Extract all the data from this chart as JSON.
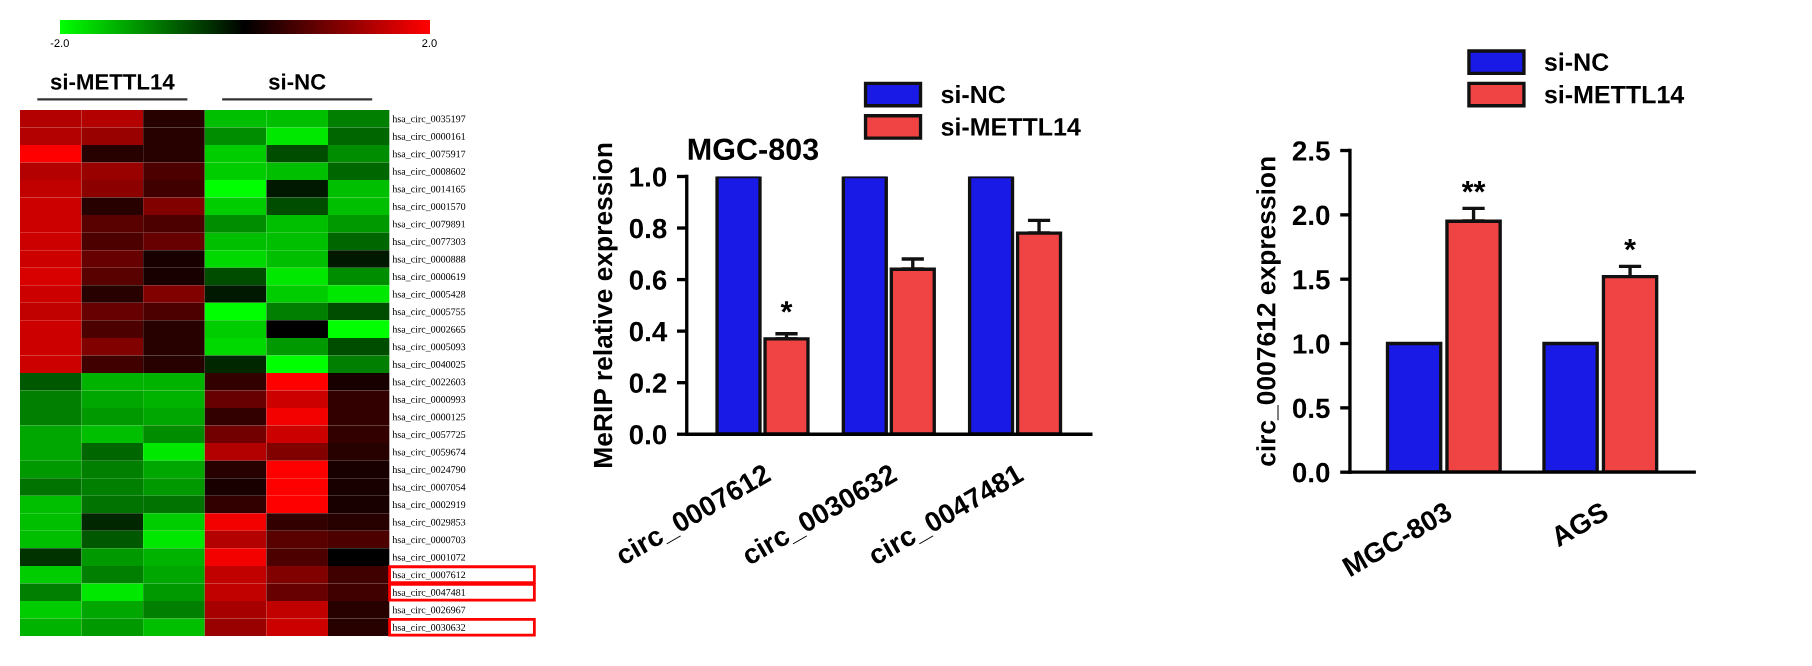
{
  "chart_data": [
    {
      "type": "heatmap",
      "categories": [
        null,
        null,
        null,
        null,
        null,
        null
      ],
      "y_categories": [
        "hsa_circ_0035197",
        "hsa_circ_0000161",
        "hsa_circ_0075917",
        "hsa_circ_0008602",
        "hsa_circ_0014165",
        "hsa_circ_0001570",
        "hsa_circ_0079891",
        "hsa_circ_0077303",
        "hsa_circ_0000888",
        "hsa_circ_0000619",
        "hsa_circ_0005428",
        "hsa_circ_0005755",
        "hsa_circ_0002665",
        "hsa_circ_0005093",
        "hsa_circ_0040025",
        "hsa_circ_0022603",
        "hsa_circ_0000993",
        "hsa_circ_0000125",
        "hsa_circ_0057725",
        "hsa_circ_0059674",
        "hsa_circ_0024790",
        "hsa_circ_0007054",
        "hsa_circ_0002919",
        "hsa_circ_0029853",
        "hsa_circ_0000703",
        "hsa_circ_0001072",
        "hsa_circ_0007612",
        "hsa_circ_0047481",
        "hsa_circ_0026967",
        "hsa_circ_0030632"
      ],
      "cells": [
        [
          1.4,
          1.4,
          0.3,
          -1.5,
          -1.5,
          -1.0
        ],
        [
          1.4,
          1.2,
          0.3,
          -1.1,
          -1.8,
          -0.8
        ],
        [
          2.0,
          0.3,
          0.3,
          -1.6,
          -0.6,
          -1.1
        ],
        [
          1.4,
          1.2,
          0.6,
          -1.6,
          -1.5,
          -0.8
        ],
        [
          1.5,
          1.1,
          0.5,
          -2.0,
          -0.2,
          -1.5
        ],
        [
          1.6,
          0.3,
          1.0,
          -1.6,
          -0.6,
          -1.5
        ],
        [
          1.6,
          0.7,
          0.6,
          -1.1,
          -1.5,
          -1.2
        ],
        [
          1.6,
          0.6,
          0.8,
          -1.5,
          -1.5,
          -0.8
        ],
        [
          1.6,
          0.8,
          0.2,
          -1.7,
          -1.5,
          -0.2
        ],
        [
          1.7,
          0.7,
          0.2,
          -0.6,
          -1.8,
          -1.1
        ],
        [
          1.6,
          0.3,
          1.0,
          -0.2,
          -1.6,
          -1.8
        ],
        [
          1.5,
          0.8,
          0.6,
          -2.0,
          -1.0,
          -0.6
        ],
        [
          1.6,
          0.6,
          0.3,
          -1.6,
          0.0,
          -2.0
        ],
        [
          1.6,
          1.0,
          0.3,
          -1.7,
          -1.2,
          -0.6
        ],
        [
          1.6,
          0.5,
          0.3,
          -0.3,
          -2.0,
          -1.0
        ],
        [
          -0.7,
          -1.4,
          -1.4,
          0.4,
          2.0,
          0.2
        ],
        [
          -1.0,
          -1.3,
          -1.4,
          0.8,
          1.6,
          0.4
        ],
        [
          -1.0,
          -1.2,
          -1.3,
          0.4,
          1.9,
          0.4
        ],
        [
          -1.3,
          -1.5,
          -1.1,
          0.9,
          1.6,
          0.4
        ],
        [
          -1.3,
          -0.8,
          -1.8,
          1.4,
          1.0,
          0.3
        ],
        [
          -1.2,
          -1.0,
          -1.3,
          0.3,
          2.0,
          0.2
        ],
        [
          -0.9,
          -1.0,
          -1.2,
          0.2,
          2.0,
          0.2
        ],
        [
          -1.5,
          -0.9,
          -0.9,
          0.4,
          2.0,
          0.2
        ],
        [
          -1.5,
          -0.3,
          -1.6,
          1.9,
          0.4,
          0.3
        ],
        [
          -1.5,
          -0.7,
          -1.8,
          1.4,
          0.7,
          0.6
        ],
        [
          -0.4,
          -1.2,
          -1.4,
          1.9,
          0.6,
          0.0
        ],
        [
          -1.6,
          -1.0,
          -1.3,
          1.5,
          1.0,
          0.5
        ],
        [
          -1.0,
          -1.8,
          -1.2,
          1.5,
          0.8,
          0.5
        ],
        [
          -1.6,
          -1.3,
          -1.0,
          1.3,
          1.5,
          0.3
        ],
        [
          -1.4,
          -1.2,
          -1.5,
          1.2,
          1.6,
          0.3
        ]
      ],
      "clim": [
        -2,
        2
      ],
      "cticks": [
        {
          "value": -2,
          "label": "-2.0"
        },
        {
          "value": 2,
          "label": "2.0"
        }
      ],
      "annotations": [
        "si-METTL14",
        "si-NC"
      ]
    },
    {
      "type": "bar",
      "title": "MGC-803",
      "ylabel": "MeRIP relative expression",
      "categories": [
        "circ_0007612",
        "circ_0030632",
        "circ_0047481"
      ],
      "series": [
        {
          "name": "si-NC",
          "color": "#1a1ae6",
          "values": [
            1.0,
            1.0,
            1.0
          ]
        },
        {
          "name": "si-METTL14",
          "color": "#f04444",
          "values": [
            0.37,
            0.64,
            0.78
          ],
          "errors": [
            0.02,
            0.04,
            0.05
          ]
        }
      ],
      "ylim": [
        0,
        1.0
      ],
      "yticks": [
        {
          "value": 0,
          "label": "0.0"
        },
        {
          "value": 0.2,
          "label": "0.2"
        },
        {
          "value": 0.4,
          "label": "0.4"
        },
        {
          "value": 0.6,
          "label": "0.6"
        },
        {
          "value": 0.8,
          "label": "0.8"
        },
        {
          "value": 1.0,
          "label": "1.0"
        }
      ],
      "annotations": [
        {
          "text": "*",
          "x": "circ_0007612",
          "y": 0.41
        }
      ],
      "legend": "top right",
      "grid": false
    },
    {
      "type": "bar",
      "ylabel": "circ_0007612 expression",
      "categories": [
        "MGC-803",
        "AGS"
      ],
      "series": [
        {
          "name": "si-NC",
          "color": "#1a1ae6",
          "values": [
            1.0,
            1.0
          ]
        },
        {
          "name": "si-METTL14",
          "color": "#f04444",
          "values": [
            1.95,
            1.52
          ],
          "errors": [
            0.1,
            0.08
          ]
        }
      ],
      "ylim": [
        0,
        2.5
      ],
      "yticks": [
        {
          "value": 0,
          "label": "0.0"
        },
        {
          "value": 0.5,
          "label": "0.5"
        },
        {
          "value": 1.0,
          "label": "1.0"
        },
        {
          "value": 1.5,
          "label": "1.5"
        },
        {
          "value": 2.0,
          "label": "2.0"
        },
        {
          "value": 2.5,
          "label": "2.5"
        }
      ],
      "annotations": [
        "**",
        "*"
      ],
      "legend": "top right",
      "grid": false
    }
  ]
}
